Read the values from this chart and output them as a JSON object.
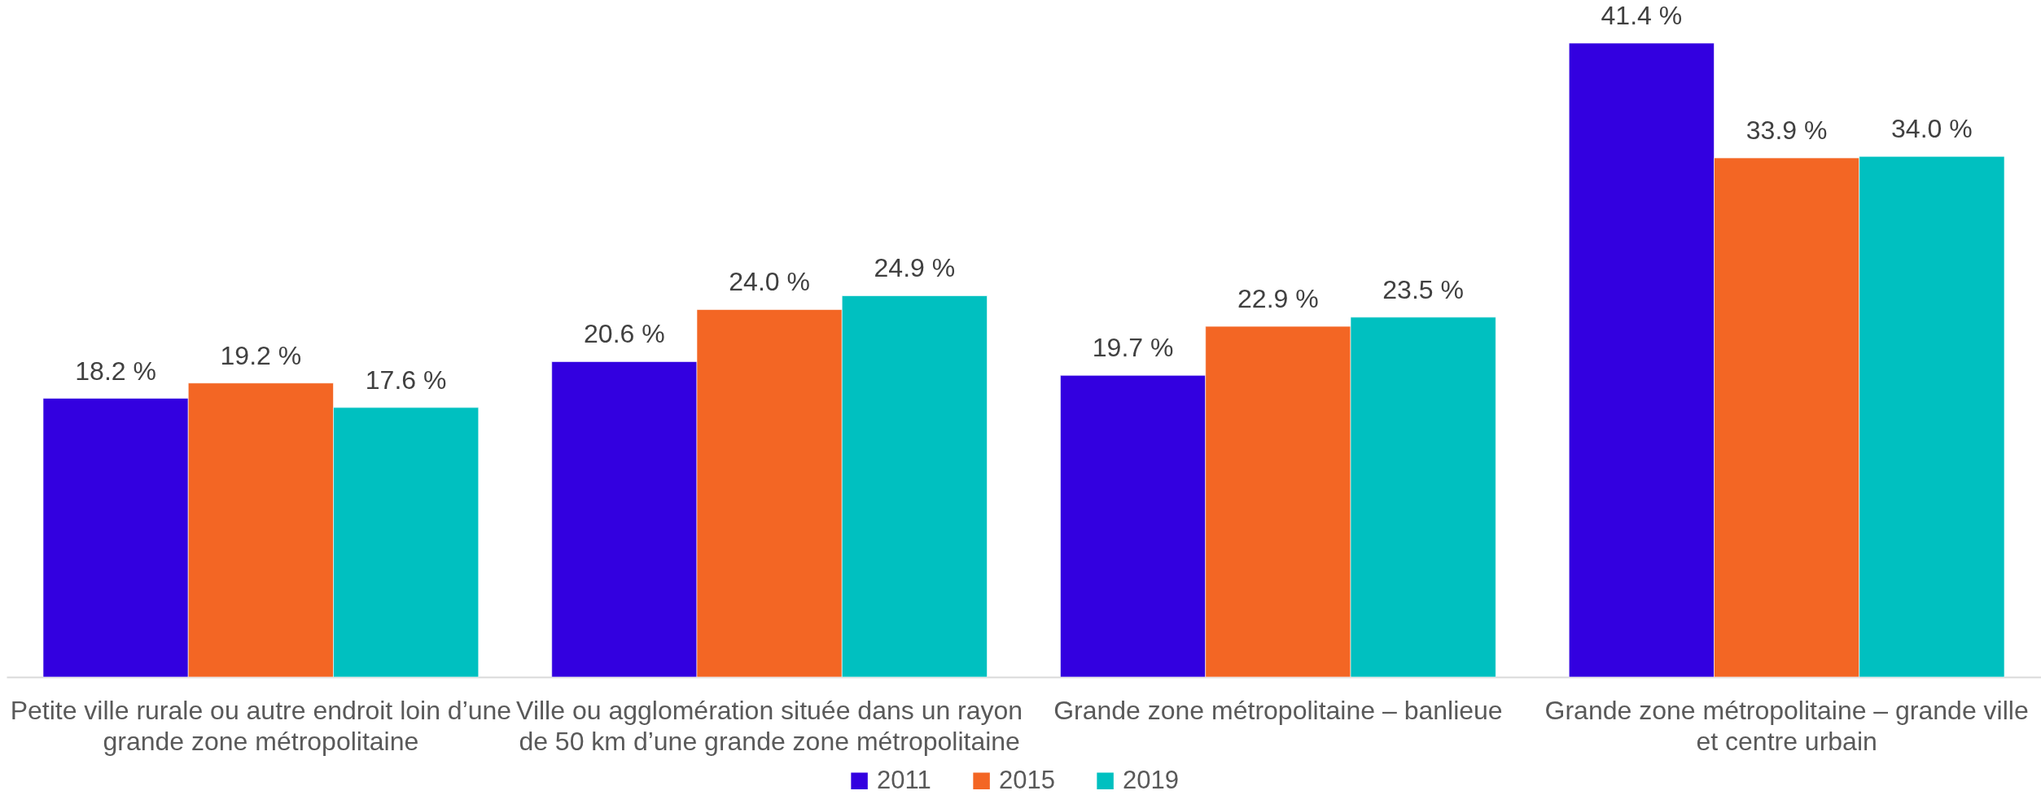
{
  "chart_data": {
    "type": "bar",
    "categories": [
      "Petite ville rurale ou autre endroit loin d’une grande zone métropolitaine",
      "Ville ou agglomération située dans un rayon de 50 km d’une grande zone métropolitaine",
      "Grande zone métropolitaine – banlieue",
      "Grande zone métropolitaine – grande ville et centre urbain"
    ],
    "series": [
      {
        "name": "2011",
        "color": "#3300e0",
        "values": [
          18.2,
          20.6,
          19.7,
          41.4
        ],
        "value_labels": [
          "18.2 %",
          "20.6 %",
          "19.7 %",
          "41.4 %"
        ]
      },
      {
        "name": "2015",
        "color": "#f36624",
        "values": [
          19.2,
          24.0,
          22.9,
          33.9
        ],
        "value_labels": [
          "19.2 %",
          "24.0 %",
          "22.9 %",
          "33.9 %"
        ]
      },
      {
        "name": "2019",
        "color": "#00c0c0",
        "values": [
          17.6,
          24.9,
          23.5,
          34.0
        ],
        "value_labels": [
          "17.6 %",
          "24.9 %",
          "23.5 %",
          "34.0 %"
        ]
      }
    ],
    "legend": "bottom"
  }
}
